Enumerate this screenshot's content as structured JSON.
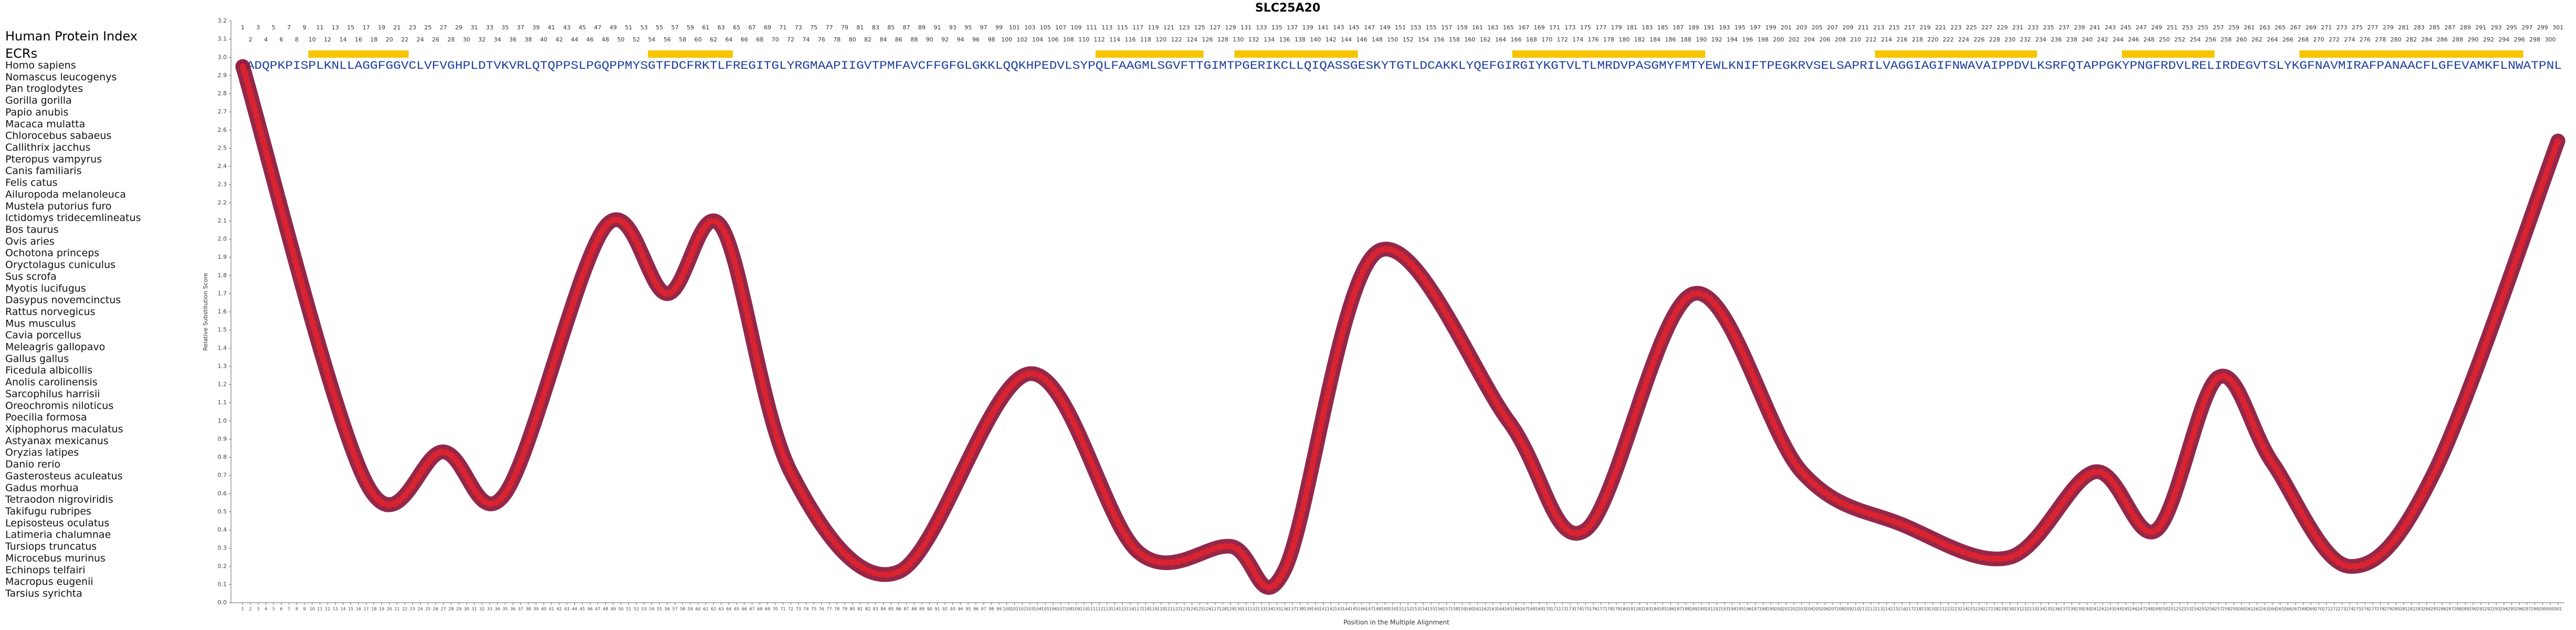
{
  "title": "SLC25A20",
  "index_label": "Human Protein Index",
  "ecr_label": "ECRs",
  "ecrs": [
    {
      "start": 10,
      "end": 22
    },
    {
      "start": 54,
      "end": 64
    },
    {
      "start": 112,
      "end": 125
    },
    {
      "start": 130,
      "end": 145
    },
    {
      "start": 166,
      "end": 190
    },
    {
      "start": 213,
      "end": 233
    },
    {
      "start": 245,
      "end": 256
    },
    {
      "start": 268,
      "end": 296
    }
  ],
  "rows": [
    {
      "species": "Homo sapiens",
      "sequence": "MADQPKPISPLKNLLAGGFGGVCLVFVGHPLDTVKVRLQTQPPSLPGQPPMYSGTFDCFRKTLFREGITGLYRGMAAPIIGVTPMFAVCFFGFGLGKKLQQKHPEDVLSYPQLFAAGMLSGVFTTGIMTPGERIKCLLQIQASSGESKYTGTLDCAKKLYQEFGIRGIYKGTVLTLMRDVPASGMYFMTYEWLKNIFTPEGKRVSELSAPRILVAGGIAGIFNWAVAIPPDVLKSRFQTAPPGKYPNGFRDVLRELIRDEGVTSLYKGFNAVMIRAFPANAACFLGFEVAMKFLNWATPNL"
    },
    {
      "species": "Nomascus leucogenys"
    },
    {
      "species": "Pan troglodytes"
    },
    {
      "species": "Gorilla gorilla"
    },
    {
      "species": "Papio anubis"
    },
    {
      "species": "Macaca mulatta"
    },
    {
      "species": "Chlorocebus sabaeus"
    },
    {
      "species": "Callithrix jacchus"
    },
    {
      "species": "Pteropus vampyrus"
    },
    {
      "species": "Canis familiaris"
    },
    {
      "species": "Felis catus"
    },
    {
      "species": "Ailuropoda melanoleuca"
    },
    {
      "species": "Mustela putorius furo"
    },
    {
      "species": "Ictidomys tridecemlineatus"
    },
    {
      "species": "Bos taurus"
    },
    {
      "species": "Ovis aries"
    },
    {
      "species": "Ochotona princeps"
    },
    {
      "species": "Oryctolagus cuniculus"
    },
    {
      "species": "Sus scrofa"
    },
    {
      "species": "Myotis lucifugus"
    },
    {
      "species": "Dasypus novemcinctus"
    },
    {
      "species": "Rattus norvegicus"
    },
    {
      "species": "Mus musculus"
    },
    {
      "species": "Cavia porcellus"
    },
    {
      "species": "Meleagris gallopavo"
    },
    {
      "species": "Gallus gallus"
    },
    {
      "species": "Ficedula albicollis"
    },
    {
      "species": "Anolis carolinensis"
    },
    {
      "species": "Sarcophilus harrisii"
    },
    {
      "species": "Oreochromis niloticus"
    },
    {
      "species": "Poecilia formosa"
    },
    {
      "species": "Xiphophorus maculatus"
    },
    {
      "species": "Astyanax mexicanus"
    },
    {
      "species": "Oryzias latipes"
    },
    {
      "species": "Danio rerio"
    },
    {
      "species": "Gasterosteus aculeatus"
    },
    {
      "species": "Gadus morhua"
    },
    {
      "species": "Tetraodon nigroviridis"
    },
    {
      "species": "Takifugu rubripes"
    },
    {
      "species": "Lepisosteus oculatus"
    },
    {
      "species": "Latimeria chalumnae"
    },
    {
      "species": "Tursiops truncatus"
    },
    {
      "species": "Microcebus murinus"
    },
    {
      "species": "Echinops telfairi"
    },
    {
      "species": "Macropus eugenii"
    },
    {
      "species": "Tarsius syrichta"
    }
  ],
  "chart_data": {
    "type": "line",
    "x_label": "Position in the Multiple Alignment",
    "y_label": "Relative Substitution Score",
    "xlim": [
      0.5,
      301.5
    ],
    "ylim": [
      0,
      3.2
    ],
    "xticks": [
      1,
      2,
      3,
      4,
      5,
      6,
      7,
      8,
      9,
      10,
      11,
      12,
      13,
      14,
      15,
      16,
      17,
      18,
      19,
      20,
      21,
      22,
      23,
      24,
      25,
      26,
      27,
      28,
      29,
      30,
      31,
      32,
      33,
      34,
      35,
      36,
      37,
      38,
      39,
      40,
      41,
      42,
      43,
      44,
      45,
      46,
      47,
      48,
      49,
      50,
      51,
      52,
      53,
      54,
      55,
      56,
      57,
      58,
      59,
      60,
      61,
      62,
      63,
      64,
      65,
      66,
      67,
      68,
      69,
      70,
      71,
      72,
      73,
      74,
      75,
      76,
      77,
      78,
      79,
      80,
      81,
      82,
      83,
      84,
      85,
      86,
      87,
      88,
      89,
      90,
      91,
      92,
      93,
      94,
      95,
      96,
      97,
      98,
      99,
      100,
      101,
      102,
      103,
      104,
      105,
      106,
      107,
      108,
      109,
      110,
      111,
      112,
      113,
      114,
      115,
      116,
      117,
      118,
      119,
      120,
      121,
      122,
      123,
      124,
      125,
      126,
      127,
      128,
      129,
      130,
      131,
      132,
      133,
      134,
      135,
      136,
      137,
      138,
      139,
      140,
      141,
      142,
      143,
      144,
      145,
      146,
      147,
      148,
      149,
      150,
      151,
      152,
      153,
      154,
      155,
      156,
      157,
      158,
      159,
      160,
      161,
      162,
      163,
      164,
      165,
      166,
      167,
      168,
      169,
      170,
      171,
      172,
      173,
      174,
      175,
      176,
      177,
      178,
      179,
      180,
      181,
      182,
      183,
      184,
      185,
      186,
      187,
      188,
      189,
      190,
      191,
      192,
      193,
      194,
      195,
      196,
      197,
      198,
      199,
      200,
      201,
      202,
      203,
      204,
      205,
      206,
      207,
      208,
      209,
      210,
      211,
      212,
      213,
      214,
      215,
      216,
      217,
      218,
      219,
      220,
      221,
      222,
      223,
      224,
      225,
      226,
      227,
      228,
      229,
      230,
      231,
      232,
      233,
      234,
      235,
      236,
      237,
      238,
      239,
      240,
      241,
      242,
      243,
      244,
      245,
      246,
      247,
      248,
      249,
      250,
      251,
      252,
      253,
      254,
      255,
      256,
      257,
      258,
      259,
      260,
      261,
      262,
      263,
      264,
      265,
      266,
      267,
      268,
      269,
      270,
      271,
      272,
      273,
      274,
      275,
      276,
      277,
      278,
      279,
      280,
      281,
      282,
      283,
      284,
      285,
      286,
      287,
      288,
      289,
      290,
      291,
      292,
      293,
      294,
      295,
      296,
      297,
      298,
      299,
      300,
      301
    ],
    "yticks": [
      {
        "value": 0,
        "label": "0.0"
      },
      0.1,
      0.2,
      0.3,
      0.4,
      0.5,
      0.6,
      0.7,
      0.8,
      0.9,
      {
        "value": 1,
        "label": "1.0"
      },
      1.1,
      1.2,
      1.3,
      1.4,
      1.5,
      1.6,
      1.7,
      1.8,
      1.9,
      {
        "value": 2,
        "label": "2.0"
      },
      2.1,
      2.2,
      2.3,
      2.4,
      2.5,
      2.6,
      2.7,
      2.8,
      2.9,
      {
        "value": 3,
        "label": "3.0"
      },
      3.1,
      3.2
    ],
    "x": [
      1,
      17,
      27,
      35,
      48,
      56,
      63,
      72,
      86,
      103,
      117,
      129,
      136,
      148,
      165,
      175,
      189,
      203,
      216,
      230,
      241,
      249,
      257,
      264,
      274,
      285,
      301
    ],
    "values": [
      2.95,
      0.66,
      0.83,
      0.6,
      2.07,
      1.7,
      2.07,
      0.72,
      0.17,
      1.26,
      0.28,
      0.31,
      0.18,
      1.93,
      1.0,
      0.4,
      1.7,
      0.72,
      0.43,
      0.25,
      0.72,
      0.4,
      1.24,
      0.77,
      0.2,
      0.72,
      2.54
    ],
    "color": "#8c1538"
  }
}
